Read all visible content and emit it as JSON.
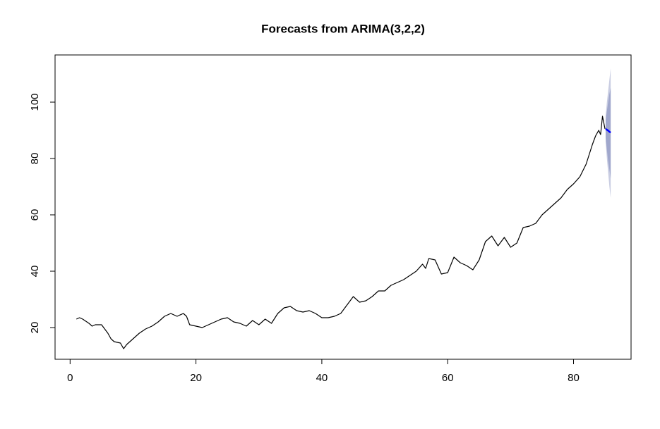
{
  "chart_data": {
    "type": "line",
    "title": "Forecasts from ARIMA(3,2,2)",
    "xlim": [
      -2.39,
      89.14
    ],
    "ylim": [
      8.75,
      116.75
    ],
    "xticks": [
      0,
      20,
      40,
      60,
      80
    ],
    "yticks": [
      20,
      40,
      60,
      80,
      100
    ],
    "grid": false,
    "series": [
      {
        "color": "#000000",
        "x": [
          1,
          1.5,
          2,
          3,
          3.5,
          4,
          5,
          6,
          6.5,
          7,
          8,
          8.5,
          9,
          10,
          11,
          12,
          13,
          14,
          15,
          16,
          17,
          18,
          18.5,
          19,
          20,
          21,
          22,
          23,
          24,
          25,
          26,
          27,
          28,
          29,
          30,
          31,
          32,
          33,
          34,
          35,
          36,
          37,
          38,
          39,
          40,
          41,
          42,
          43,
          44,
          45,
          46,
          47,
          48,
          49,
          50,
          51,
          52,
          53,
          54,
          55,
          56,
          56.5,
          57,
          58,
          59,
          60,
          61,
          62,
          63,
          64,
          65,
          66,
          67,
          68,
          69,
          70,
          71,
          72,
          73,
          74,
          75,
          76,
          77,
          78,
          79,
          80,
          81,
          82,
          83,
          83.5,
          84,
          84.3,
          84.6,
          85
        ],
        "values": [
          23,
          23.5,
          23,
          21.5,
          20.5,
          21,
          21,
          18,
          16,
          15,
          14.5,
          12.5,
          14,
          16,
          18,
          19.5,
          20.5,
          22,
          24,
          25,
          24,
          25,
          24,
          21,
          20.5,
          20,
          21,
          22,
          23,
          23.5,
          22,
          21.5,
          20.5,
          22.5,
          21,
          23,
          21.5,
          25,
          27,
          27.5,
          26,
          25.5,
          26,
          25,
          23.5,
          23.5,
          24,
          25,
          28,
          31,
          29,
          29.5,
          31,
          33,
          33,
          35,
          36,
          37,
          38.5,
          40,
          42.5,
          41,
          44.5,
          44,
          39,
          39.5,
          45,
          43,
          42,
          40.5,
          44,
          50.5,
          52.5,
          49,
          52,
          48.5,
          50,
          55.5,
          56,
          57,
          60,
          62,
          64,
          66,
          69,
          71,
          73.5,
          78,
          85,
          88,
          90,
          88.5,
          95,
          90.5
        ]
      },
      {
        "color": "#0000ff",
        "x": [
          85.1,
          85.3,
          85.5,
          85.7,
          85.9
        ],
        "values": [
          90.5,
          90.2,
          89.9,
          89.5,
          89.2
        ]
      }
    ],
    "bands": [
      {
        "color": "#c9cde2",
        "x": [
          85.1,
          85.3,
          85.5,
          85.7,
          85.9
        ],
        "lower": [
          86,
          80,
          75,
          70,
          66
        ],
        "upper": [
          95,
          100,
          104,
          108,
          112
        ]
      },
      {
        "color": "#a0a7cc",
        "x": [
          85.1,
          85.3,
          85.5,
          85.7,
          85.9
        ],
        "lower": [
          87.5,
          83,
          79,
          76,
          73
        ],
        "upper": [
          93.5,
          97,
          100,
          103,
          105
        ]
      }
    ]
  }
}
